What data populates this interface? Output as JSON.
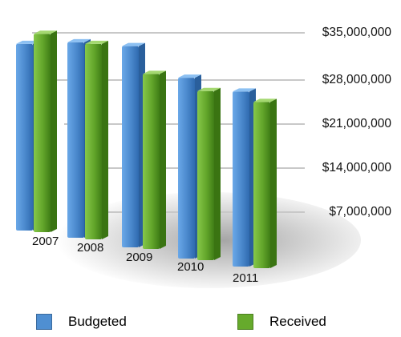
{
  "chart_data": {
    "type": "bar",
    "categories": [
      "2007",
      "2008",
      "2009",
      "2010",
      "2011"
    ],
    "series": [
      {
        "name": "Budgeted",
        "color": "#4f8fd2",
        "values": [
          32000000,
          33500000,
          34500000,
          31000000,
          30000000
        ]
      },
      {
        "name": "Received",
        "color": "#66aa2c",
        "values": [
          34000000,
          33500000,
          30000000,
          29000000,
          28500000
        ]
      }
    ],
    "y_ticks": [
      "$35,000,000",
      "$28,000,000",
      "$21,000,000",
      "$14,000,000",
      "$7,000,000"
    ],
    "ylim": [
      0,
      35000000
    ],
    "grid": true,
    "legend_position": "bottom"
  }
}
